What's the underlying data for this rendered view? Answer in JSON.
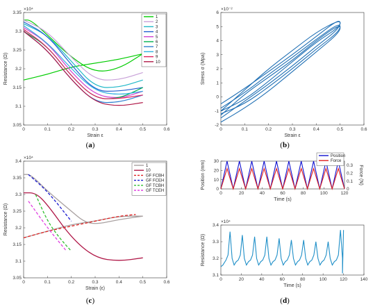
{
  "chart_data": [
    {
      "id": "a",
      "panel_label": "a",
      "type": "line",
      "xlabel": "Strain ε",
      "ylabel": "Resistance (Ω)",
      "exponent_label": "×10⁴",
      "xlim": [
        0,
        0.6
      ],
      "ylim": [
        3.05,
        3.35
      ],
      "xticks": [
        "0",
        "0.1",
        "0.2",
        "0.3",
        "0.4",
        "0.5",
        "0.6"
      ],
      "yticks": [
        "3.05",
        "3.1",
        "3.15",
        "3.2",
        "3.25",
        "3.3",
        "3.35"
      ],
      "legend_position": "top-right",
      "series": [
        {
          "name": "1",
          "color": "#00cc00",
          "values": [
            [
              0,
              3.17
            ],
            [
              0.1,
              3.185
            ],
            [
              0.2,
              3.205
            ],
            [
              0.3,
              3.215
            ],
            [
              0.4,
              3.225
            ],
            [
              0.5,
              3.24
            ],
            [
              0.5,
              3.24
            ],
            [
              0.4,
              3.2
            ],
            [
              0.3,
              3.19
            ],
            [
              0.2,
              3.23
            ],
            [
              0.1,
              3.29
            ],
            [
              0.03,
              3.33
            ],
            [
              0,
              3.33
            ]
          ]
        },
        {
          "name": "2",
          "color": "#c8a0d8",
          "values": [
            [
              0,
              3.33
            ],
            [
              0.1,
              3.3
            ],
            [
              0.2,
              3.23
            ],
            [
              0.3,
              3.17
            ],
            [
              0.4,
              3.17
            ],
            [
              0.5,
              3.19
            ]
          ]
        },
        {
          "name": "3",
          "color": "#20b8c8",
          "values": [
            [
              0,
              3.32
            ],
            [
              0.1,
              3.29
            ],
            [
              0.2,
              3.22
            ],
            [
              0.3,
              3.15
            ],
            [
              0.4,
              3.15
            ],
            [
              0.5,
              3.17
            ]
          ]
        },
        {
          "name": "4",
          "color": "#2060d0",
          "values": [
            [
              0,
              3.325
            ],
            [
              0.1,
              3.29
            ],
            [
              0.2,
              3.21
            ],
            [
              0.3,
              3.14
            ],
            [
              0.4,
              3.14
            ],
            [
              0.5,
              3.15
            ]
          ]
        },
        {
          "name": "5",
          "color": "#d040d0",
          "values": [
            [
              0,
              3.31
            ],
            [
              0.1,
              3.27
            ],
            [
              0.2,
              3.19
            ],
            [
              0.3,
              3.13
            ],
            [
              0.4,
              3.12
            ],
            [
              0.5,
              3.14
            ]
          ]
        },
        {
          "name": "6",
          "color": "#00b050",
          "values": [
            [
              0,
              3.3
            ],
            [
              0.1,
              3.26
            ],
            [
              0.2,
              3.18
            ],
            [
              0.3,
              3.12
            ],
            [
              0.4,
              3.12
            ],
            [
              0.5,
              3.15
            ]
          ]
        },
        {
          "name": "7",
          "color": "#3080d0",
          "values": [
            [
              0,
              3.3
            ],
            [
              0.1,
              3.25
            ],
            [
              0.2,
              3.17
            ],
            [
              0.3,
              3.11
            ],
            [
              0.4,
              3.11
            ],
            [
              0.5,
              3.13
            ]
          ]
        },
        {
          "name": "8",
          "color": "#30b0e0",
          "values": [
            [
              0,
              3.315
            ],
            [
              0.1,
              3.27
            ],
            [
              0.2,
              3.2
            ],
            [
              0.3,
              3.14
            ],
            [
              0.4,
              3.13
            ],
            [
              0.5,
              3.14
            ]
          ]
        },
        {
          "name": "9",
          "color": "#e02060",
          "values": [
            [
              0,
              3.305
            ],
            [
              0.1,
              3.26
            ],
            [
              0.2,
              3.18
            ],
            [
              0.3,
              3.12
            ],
            [
              0.4,
              3.12
            ],
            [
              0.5,
              3.13
            ]
          ]
        },
        {
          "name": "10",
          "color": "#b01848",
          "values": [
            [
              0,
              3.3
            ],
            [
              0.1,
              3.25
            ],
            [
              0.2,
              3.17
            ],
            [
              0.3,
              3.11
            ],
            [
              0.4,
              3.1
            ],
            [
              0.5,
              3.11
            ]
          ]
        }
      ]
    },
    {
      "id": "b",
      "panel_label": "b",
      "type": "line",
      "xlabel": "Strain ε",
      "ylabel": "Stress σ (Mpa)",
      "exponent_label": "×10⁻²",
      "xlim": [
        0,
        0.6
      ],
      "ylim": [
        -2,
        6
      ],
      "xticks": [
        "0",
        "0.1",
        "0.2",
        "0.3",
        "0.4",
        "0.5",
        "0.6"
      ],
      "yticks": [
        "-2",
        "-1",
        "0",
        "1",
        "2",
        "3",
        "4",
        "5",
        "6"
      ],
      "series": [
        {
          "name": "",
          "color": "#1f6fb4",
          "values": [
            [
              0,
              -0.5
            ],
            [
              0.1,
              0.6
            ],
            [
              0.2,
              1.8
            ],
            [
              0.3,
              3.0
            ],
            [
              0.4,
              4.3
            ],
            [
              0.5,
              5.6
            ],
            [
              0.5,
              4.9
            ],
            [
              0.4,
              3.6
            ],
            [
              0.3,
              2.2
            ],
            [
              0.2,
              0.9
            ],
            [
              0.1,
              -0.3
            ],
            [
              0,
              -1.5
            ]
          ]
        },
        {
          "name": "",
          "color": "#1f6fb4",
          "values": [
            [
              0,
              -0.8
            ],
            [
              0.1,
              0.3
            ],
            [
              0.2,
              1.6
            ],
            [
              0.3,
              2.8
            ],
            [
              0.4,
              4.1
            ],
            [
              0.5,
              5.3
            ],
            [
              0.5,
              4.7
            ],
            [
              0.4,
              3.4
            ],
            [
              0.3,
              2.0
            ],
            [
              0.2,
              0.7
            ],
            [
              0.1,
              -0.5
            ],
            [
              0,
              -1.2
            ]
          ]
        },
        {
          "name": "",
          "color": "#1f6fb4",
          "values": [
            [
              0,
              -1.0
            ],
            [
              0.1,
              0.5
            ],
            [
              0.2,
              2.0
            ],
            [
              0.3,
              3.3
            ],
            [
              0.4,
              4.6
            ],
            [
              0.5,
              5.5
            ],
            [
              0.5,
              5.0
            ],
            [
              0.4,
              3.9
            ],
            [
              0.3,
              2.5
            ],
            [
              0.2,
              1.1
            ],
            [
              0.1,
              -0.2
            ],
            [
              0,
              -1.0
            ]
          ]
        },
        {
          "name": "",
          "color": "#1f6fb4",
          "values": [
            [
              0,
              -1.3
            ],
            [
              0.1,
              0.2
            ],
            [
              0.2,
              1.4
            ],
            [
              0.3,
              2.6
            ],
            [
              0.4,
              4.0
            ],
            [
              0.5,
              5.2
            ],
            [
              0.5,
              4.6
            ],
            [
              0.4,
              3.2
            ],
            [
              0.3,
              1.8
            ],
            [
              0.2,
              0.4
            ],
            [
              0.1,
              -0.8
            ],
            [
              0,
              -1.8
            ]
          ]
        }
      ]
    },
    {
      "id": "c",
      "panel_label": "c",
      "type": "line",
      "xlabel": "Strain  (ε)",
      "ylabel": "Resistance  (Ω)",
      "exponent_label": "×10⁴",
      "xlim": [
        0,
        0.6
      ],
      "ylim": [
        3.05,
        3.4
      ],
      "xticks": [
        "0",
        "0.1",
        "0.2",
        "0.3",
        "0.4",
        "0.5",
        "0.6"
      ],
      "yticks": [
        "3.05",
        "3.1",
        "3.15",
        "3.2",
        "3.25",
        "3.3",
        "3.35",
        "3.4"
      ],
      "legend_position": "top-right",
      "series": [
        {
          "name": "1",
          "color": "#a8a0a0",
          "dash": false,
          "values": [
            [
              0,
              3.17
            ],
            [
              0.1,
              3.19
            ],
            [
              0.2,
              3.21
            ],
            [
              0.3,
              3.22
            ],
            [
              0.4,
              3.235
            ],
            [
              0.5,
              3.235
            ],
            [
              0.5,
              3.235
            ],
            [
              0.4,
              3.225
            ],
            [
              0.3,
              3.21
            ],
            [
              0.25,
              3.22
            ],
            [
              0.2,
              3.25
            ],
            [
              0.1,
              3.31
            ],
            [
              0.03,
              3.36
            ],
            [
              0,
              3.36
            ]
          ]
        },
        {
          "name": "10",
          "color": "#b01848",
          "dash": false,
          "values": [
            [
              0,
              3.305
            ],
            [
              0.05,
              3.305
            ],
            [
              0.1,
              3.27
            ],
            [
              0.2,
              3.17
            ],
            [
              0.3,
              3.11
            ],
            [
              0.4,
              3.1
            ],
            [
              0.5,
              3.11
            ]
          ]
        },
        {
          "name": "GF FCBH",
          "color": "#e02020",
          "dash": true,
          "values": [
            [
              0,
              3.17
            ],
            [
              0.1,
              3.19
            ],
            [
              0.2,
              3.205
            ],
            [
              0.3,
              3.22
            ],
            [
              0.4,
              3.235
            ],
            [
              0.47,
              3.24
            ]
          ]
        },
        {
          "name": "GF FCEH",
          "color": "#1a1ad0",
          "dash": true,
          "values": [
            [
              0.02,
              3.36
            ],
            [
              0.1,
              3.31
            ],
            [
              0.2,
              3.22
            ]
          ]
        },
        {
          "name": "GF TCBH",
          "color": "#30c030",
          "dash": true,
          "values": [
            [
              0.05,
              3.3
            ],
            [
              0.1,
              3.22
            ],
            [
              0.15,
              3.17
            ],
            [
              0.2,
              3.13
            ]
          ]
        },
        {
          "name": "GF TCEH",
          "color": "#e040e0",
          "dash": true,
          "values": [
            [
              0.02,
              3.28
            ],
            [
              0.1,
              3.2
            ],
            [
              0.18,
              3.13
            ]
          ]
        }
      ]
    },
    {
      "id": "d_top",
      "panel_label": "d",
      "type": "line",
      "xlabel": "Time (s)",
      "ylabel": "Position (mm)",
      "ylabel_right": "Force (N)",
      "xlim": [
        0,
        120
      ],
      "ylim": [
        0,
        30
      ],
      "ylim_right": [
        0,
        0.35
      ],
      "xticks": [
        "0",
        "20",
        "40",
        "60",
        "80",
        "100",
        "120"
      ],
      "yticks": [
        "0",
        "10",
        "20",
        "30"
      ],
      "yticks_right": [
        "0",
        "0.1",
        "0.2",
        "0.3"
      ],
      "legend_position": "top-right",
      "periods": 10,
      "series": [
        {
          "name": "Position",
          "color": "#1010d0",
          "peak": 30
        },
        {
          "name": "Force",
          "color": "#e02020",
          "peak": 22
        }
      ]
    },
    {
      "id": "d_bottom",
      "panel_label": "",
      "type": "line",
      "xlabel": "Time (s)",
      "ylabel": "Resistance (Ω)",
      "exponent_label": "×10⁴",
      "xlim": [
        0,
        140
      ],
      "ylim": [
        3.1,
        3.4
      ],
      "xticks": [
        "0",
        "20",
        "40",
        "60",
        "80",
        "100",
        "120",
        "140"
      ],
      "yticks": [
        "3.1",
        "3.2",
        "3.3",
        "3.4"
      ],
      "series": [
        {
          "name": "",
          "color": "#1f8fc8",
          "peaks": [
            3.36,
            3.34,
            3.33,
            3.33,
            3.32,
            3.31,
            3.31,
            3.3,
            3.3,
            3.37
          ]
        }
      ]
    }
  ]
}
